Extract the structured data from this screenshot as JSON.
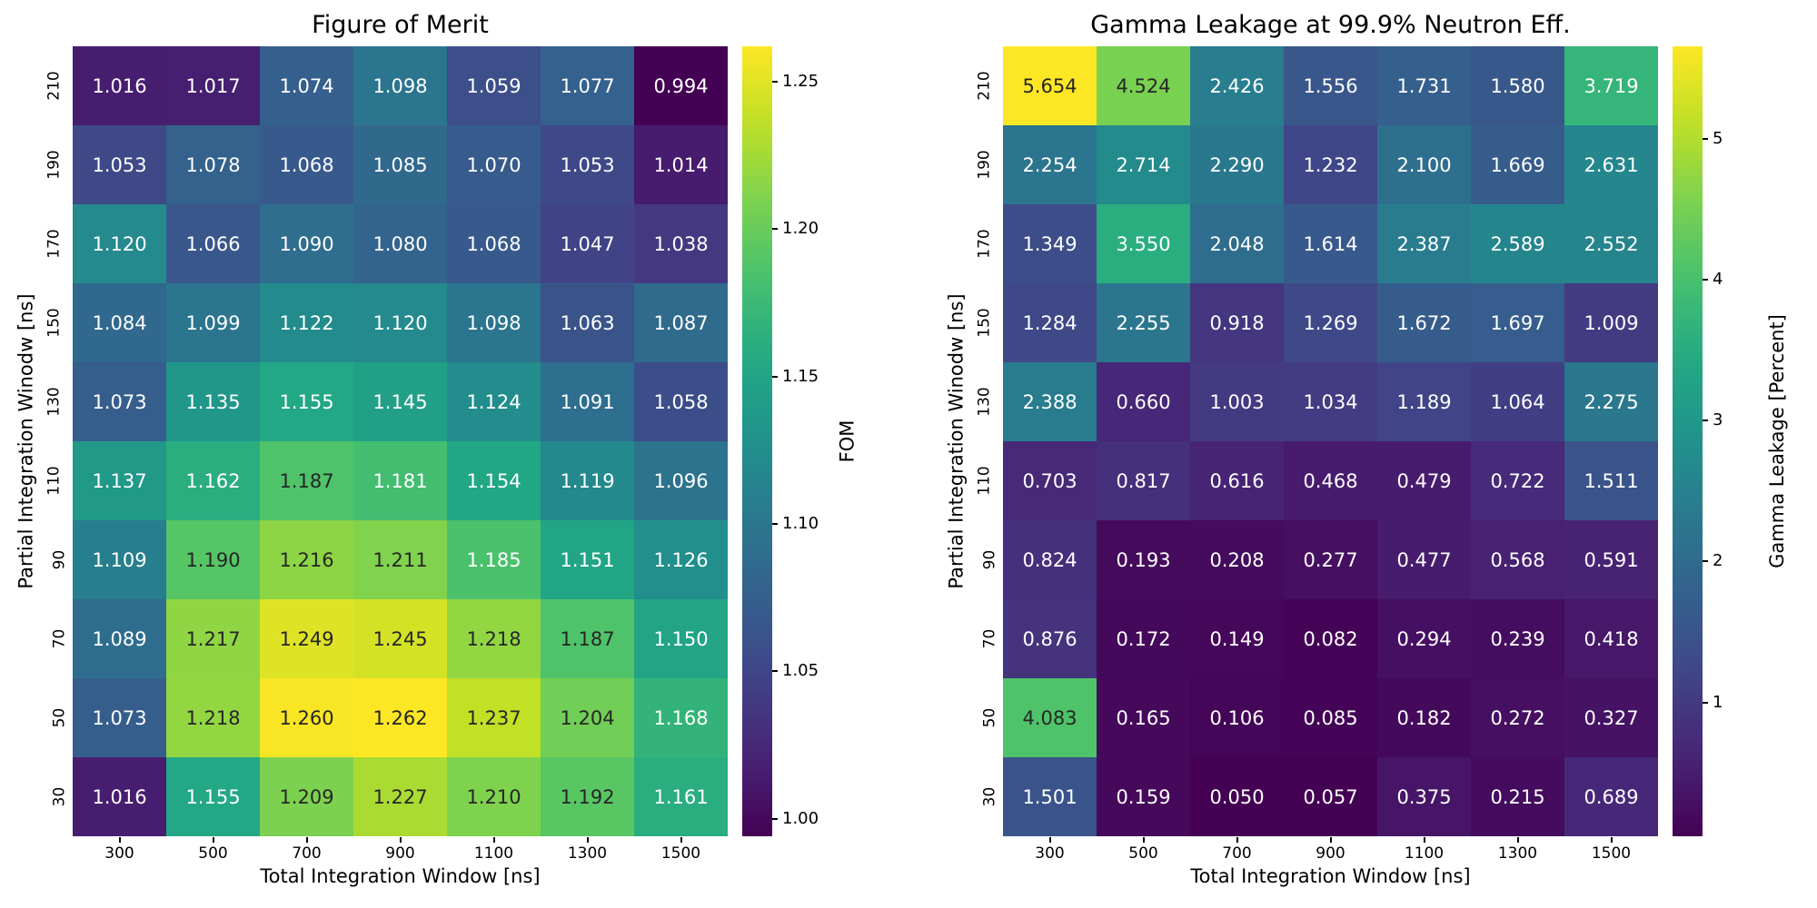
{
  "chart_data": [
    {
      "type": "heatmap",
      "title": "Figure of Merit",
      "xlabel": "Total Integration Window [ns]",
      "ylabel": "Partial Integration Winodw [ns]",
      "colorbar_label": "FOM",
      "colormap": "viridis",
      "value_decimals": 3,
      "x_ticklabels": [
        "300",
        "500",
        "700",
        "900",
        "1100",
        "1300",
        "1500"
      ],
      "y_ticklabels": [
        "210",
        "190",
        "170",
        "150",
        "130",
        "110",
        "90",
        "70",
        "50",
        "30"
      ],
      "values": [
        [
          1.016,
          1.017,
          1.074,
          1.098,
          1.059,
          1.077,
          0.994
        ],
        [
          1.053,
          1.078,
          1.068,
          1.085,
          1.07,
          1.053,
          1.014
        ],
        [
          1.12,
          1.066,
          1.09,
          1.08,
          1.068,
          1.047,
          1.038
        ],
        [
          1.084,
          1.099,
          1.122,
          1.12,
          1.098,
          1.063,
          1.087
        ],
        [
          1.073,
          1.135,
          1.155,
          1.145,
          1.124,
          1.091,
          1.058
        ],
        [
          1.137,
          1.162,
          1.187,
          1.181,
          1.154,
          1.119,
          1.096
        ],
        [
          1.109,
          1.19,
          1.216,
          1.211,
          1.185,
          1.151,
          1.126
        ],
        [
          1.089,
          1.217,
          1.249,
          1.245,
          1.218,
          1.187,
          1.15
        ],
        [
          1.073,
          1.218,
          1.26,
          1.262,
          1.237,
          1.204,
          1.168
        ],
        [
          1.016,
          1.155,
          1.209,
          1.227,
          1.21,
          1.192,
          1.161
        ]
      ],
      "colorbar_tick_values": [
        1.0,
        1.05,
        1.1,
        1.15,
        1.2,
        1.25
      ],
      "colorbar_tick_labels": [
        "1.00",
        "1.05",
        "1.10",
        "1.15",
        "1.20",
        "1.25"
      ]
    },
    {
      "type": "heatmap",
      "title": "Gamma Leakage at 99.9% Neutron Eff.",
      "xlabel": "Total Integration Window [ns]",
      "ylabel": "Partial Integration Winodw [ns]",
      "colorbar_label": "Gamma Leakage [Percent]",
      "colormap": "viridis",
      "value_decimals": 3,
      "x_ticklabels": [
        "300",
        "500",
        "700",
        "900",
        "1100",
        "1300",
        "1500"
      ],
      "y_ticklabels": [
        "210",
        "190",
        "170",
        "150",
        "130",
        "110",
        "90",
        "70",
        "50",
        "30"
      ],
      "values": [
        [
          5.654,
          4.524,
          2.426,
          1.556,
          1.731,
          1.58,
          3.719
        ],
        [
          2.254,
          2.714,
          2.29,
          1.232,
          2.1,
          1.669,
          2.631
        ],
        [
          1.349,
          3.55,
          2.048,
          1.614,
          2.387,
          2.589,
          2.552
        ],
        [
          1.284,
          2.255,
          0.918,
          1.269,
          1.672,
          1.697,
          1.009
        ],
        [
          2.388,
          0.66,
          1.003,
          1.034,
          1.189,
          1.064,
          2.275
        ],
        [
          0.703,
          0.817,
          0.616,
          0.468,
          0.479,
          0.722,
          1.511
        ],
        [
          0.824,
          0.193,
          0.208,
          0.277,
          0.477,
          0.568,
          0.591
        ],
        [
          0.876,
          0.172,
          0.149,
          0.082,
          0.294,
          0.239,
          0.418
        ],
        [
          4.083,
          0.165,
          0.106,
          0.085,
          0.182,
          0.272,
          0.327
        ],
        [
          1.501,
          0.159,
          0.05,
          0.057,
          0.375,
          0.215,
          0.689
        ]
      ],
      "colorbar_tick_values": [
        1,
        2,
        3,
        4,
        5
      ],
      "colorbar_tick_labels": [
        "1",
        "2",
        "3",
        "4",
        "5"
      ]
    }
  ]
}
